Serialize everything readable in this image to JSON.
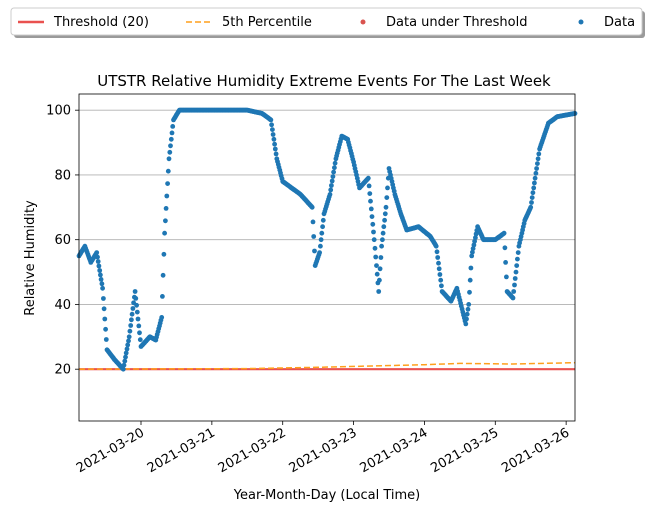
{
  "chart_data": {
    "type": "scatter",
    "title": "UTSTR Relative Humidity Extreme Events For The Last Week",
    "xlabel": "Year-Month-Day (Local Time)",
    "ylabel": "Relative Humidity",
    "xlim": [
      "2021-03-19 03:00",
      "2021-03-26 03:00"
    ],
    "ylim": [
      4,
      105
    ],
    "yticks": [
      20,
      40,
      60,
      80,
      100
    ],
    "xticks": [
      "2021-03-20",
      "2021-03-21",
      "2021-03-22",
      "2021-03-23",
      "2021-03-24",
      "2021-03-25",
      "2021-03-26"
    ],
    "grid": "horizontal",
    "legend": {
      "placement": "top, above plot",
      "entries": [
        {
          "label": "Threshold (20)",
          "kind": "line",
          "color": "#e9514f"
        },
        {
          "label": "5th Percentile",
          "kind": "dashed",
          "color": "#ff9f1c"
        },
        {
          "label": "Data under Threshold",
          "kind": "dot",
          "color": "#d9534f"
        },
        {
          "label": "Data",
          "kind": "dot",
          "color": "#1f77b4"
        }
      ]
    },
    "threshold": {
      "name": "Threshold (20)",
      "value": 20,
      "color": "#e9514f"
    },
    "percentile": {
      "name": "5th Percentile",
      "color": "#ff9f1c",
      "points": [
        [
          "2021-03-19 03:00",
          20.0
        ],
        [
          "2021-03-21 12:00",
          20.2
        ],
        [
          "2021-03-22 12:00",
          20.6
        ],
        [
          "2021-03-23 06:00",
          21.0
        ],
        [
          "2021-03-24 00:00",
          21.4
        ],
        [
          "2021-03-24 12:00",
          21.8
        ],
        [
          "2021-03-25 06:00",
          21.6
        ],
        [
          "2021-03-26 03:00",
          22.0
        ]
      ]
    },
    "series": [
      {
        "name": "Data",
        "color": "#1f77b4",
        "anchors": [
          [
            "2021-03-19 03:00",
            55
          ],
          [
            "2021-03-19 05:00",
            58
          ],
          [
            "2021-03-19 07:00",
            53
          ],
          [
            "2021-03-19 09:00",
            56
          ],
          [
            "2021-03-19 11:00",
            45
          ],
          [
            "2021-03-19 12:30",
            26
          ],
          [
            "2021-03-19 15:00",
            23
          ],
          [
            "2021-03-19 18:00",
            20
          ],
          [
            "2021-03-19 20:00",
            30
          ],
          [
            "2021-03-19 22:00",
            44
          ],
          [
            "2021-03-20 00:00",
            27
          ],
          [
            "2021-03-20 03:00",
            30
          ],
          [
            "2021-03-20 05:00",
            29
          ],
          [
            "2021-03-20 07:00",
            36
          ],
          [
            "2021-03-20 08:00",
            62
          ],
          [
            "2021-03-20 09:30",
            85
          ],
          [
            "2021-03-20 11:00",
            97
          ],
          [
            "2021-03-20 13:00",
            100
          ],
          [
            "2021-03-21 12:00",
            100
          ],
          [
            "2021-03-21 17:00",
            99
          ],
          [
            "2021-03-21 20:00",
            97
          ],
          [
            "2021-03-21 22:00",
            85
          ],
          [
            "2021-03-22 00:00",
            78
          ],
          [
            "2021-03-22 03:00",
            76
          ],
          [
            "2021-03-22 06:00",
            74
          ],
          [
            "2021-03-22 08:00",
            72
          ],
          [
            "2021-03-22 10:00",
            70
          ],
          [
            "2021-03-22 11:00",
            52
          ],
          [
            "2021-03-22 12:30",
            56
          ],
          [
            "2021-03-22 14:00",
            68
          ],
          [
            "2021-03-22 16:00",
            74
          ],
          [
            "2021-03-22 18:00",
            85
          ],
          [
            "2021-03-22 20:00",
            92
          ],
          [
            "2021-03-22 22:00",
            91
          ],
          [
            "2021-03-23 00:00",
            84
          ],
          [
            "2021-03-23 02:00",
            76
          ],
          [
            "2021-03-23 05:00",
            79
          ],
          [
            "2021-03-23 07:00",
            60
          ],
          [
            "2021-03-23 08:30",
            44
          ],
          [
            "2021-03-23 09:30",
            58
          ],
          [
            "2021-03-23 11:00",
            70
          ],
          [
            "2021-03-23 12:00",
            82
          ],
          [
            "2021-03-23 14:00",
            74
          ],
          [
            "2021-03-23 16:00",
            68
          ],
          [
            "2021-03-23 18:00",
            63
          ],
          [
            "2021-03-23 22:00",
            64
          ],
          [
            "2021-03-24 02:00",
            61
          ],
          [
            "2021-03-24 04:00",
            58
          ],
          [
            "2021-03-24 06:00",
            44
          ],
          [
            "2021-03-24 09:00",
            41
          ],
          [
            "2021-03-24 11:00",
            45
          ],
          [
            "2021-03-24 14:00",
            34
          ],
          [
            "2021-03-24 15:00",
            40
          ],
          [
            "2021-03-24 16:00",
            55
          ],
          [
            "2021-03-24 18:00",
            64
          ],
          [
            "2021-03-24 20:00",
            60
          ],
          [
            "2021-03-25 00:00",
            60
          ],
          [
            "2021-03-25 03:00",
            62
          ],
          [
            "2021-03-25 04:00",
            44
          ],
          [
            "2021-03-25 06:00",
            42
          ],
          [
            "2021-03-25 08:00",
            58
          ],
          [
            "2021-03-25 10:00",
            66
          ],
          [
            "2021-03-25 12:00",
            70
          ],
          [
            "2021-03-25 15:00",
            88
          ],
          [
            "2021-03-25 18:00",
            96
          ],
          [
            "2021-03-25 21:00",
            98
          ],
          [
            "2021-03-26 03:00",
            99
          ]
        ]
      }
    ]
  }
}
